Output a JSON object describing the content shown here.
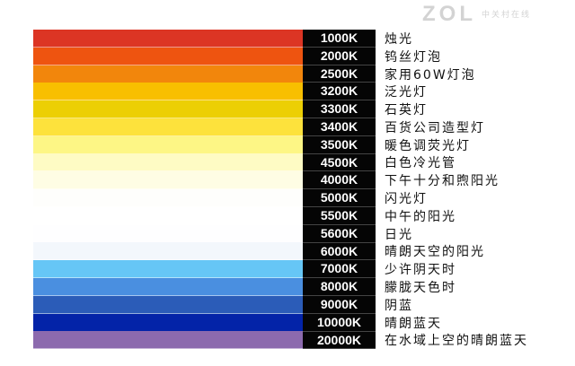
{
  "rows": [
    {
      "kelvin": "1000K",
      "label": "烛光",
      "color": "#dc3524"
    },
    {
      "kelvin": "2000K",
      "label": "钨丝灯泡",
      "color": "#ee5410"
    },
    {
      "kelvin": "2500K",
      "label": "家用60W灯泡",
      "color": "#f2860c"
    },
    {
      "kelvin": "3200K",
      "label": "泛光灯",
      "color": "#f8bf00"
    },
    {
      "kelvin": "3300K",
      "label": "石英灯",
      "color": "#eccf04"
    },
    {
      "kelvin": "3400K",
      "label": "百货公司造型灯",
      "color": "#fde23c"
    },
    {
      "kelvin": "3500K",
      "label": "暖色调荧光灯",
      "color": "#fdf685"
    },
    {
      "kelvin": "4500K",
      "label": "白色冷光管",
      "color": "#fefbc4"
    },
    {
      "kelvin": "4000K",
      "label": "下午十分和煦阳光",
      "color": "#fefde4"
    },
    {
      "kelvin": "5000K",
      "label": "闪光灯",
      "color": "#fefefc"
    },
    {
      "kelvin": "5500K",
      "label": "中午的阳光",
      "color": "#ffffff"
    },
    {
      "kelvin": "5600K",
      "label": "日光",
      "color": "#fefeff"
    },
    {
      "kelvin": "6000K",
      "label": "晴朗天空的阳光",
      "color": "#f3f7fc"
    },
    {
      "kelvin": "7000K",
      "label": "少许阴天时",
      "color": "#66c6f6"
    },
    {
      "kelvin": "8000K",
      "label": "朦胧天色时",
      "color": "#4a8fe0"
    },
    {
      "kelvin": "9000K",
      "label": "阴蓝",
      "color": "#2b5cb8"
    },
    {
      "kelvin": "10000K",
      "label": "晴朗蓝天",
      "color": "#0323a8"
    },
    {
      "kelvin": "20000K",
      "label": "在水域上空的晴朗蓝天",
      "color": "#8c6aae"
    }
  ],
  "watermark": {
    "logo": "ZOL",
    "sub": "中关村在线"
  }
}
